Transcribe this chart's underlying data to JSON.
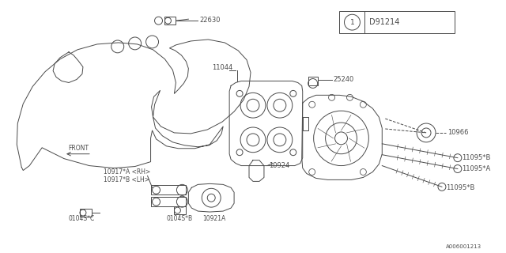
{
  "background_color": "#ffffff",
  "diagram_id": "D91214",
  "diagram_circle_label": "1",
  "footer_id": "A006001213",
  "gray": "#4a4a4a",
  "lw": 0.7
}
